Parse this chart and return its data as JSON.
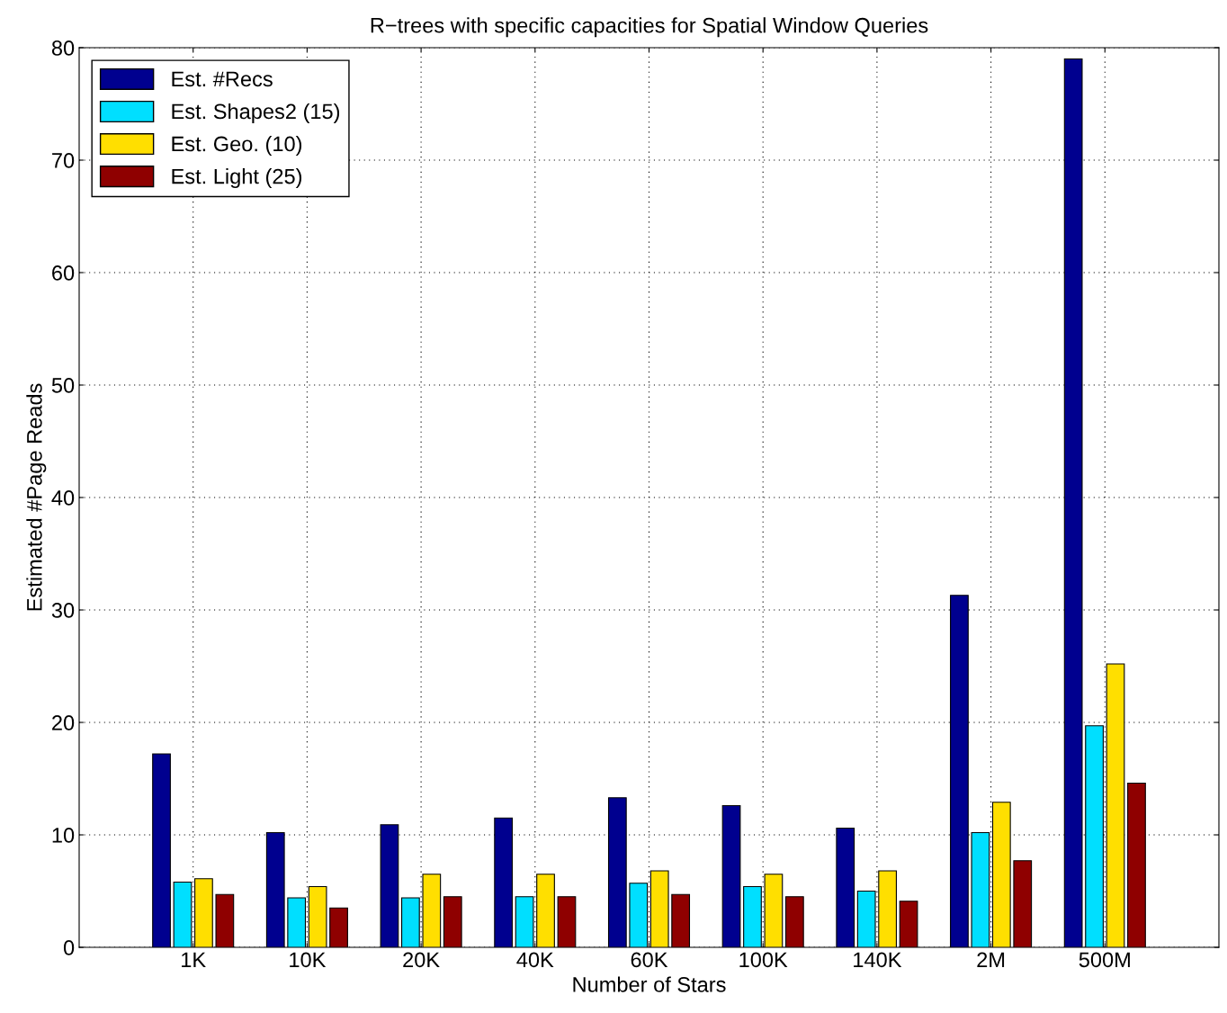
{
  "chart_data": {
    "type": "bar",
    "title": "R−trees with specific capacities for Spatial Window Queries",
    "xlabel": "Number of Stars",
    "ylabel": "Estimated #Page Reads",
    "categories": [
      "1K",
      "10K",
      "20K",
      "40K",
      "60K",
      "100K",
      "140K",
      "2M",
      "500M"
    ],
    "series": [
      {
        "name": "Est. #Recs",
        "color": "#00008f",
        "values": [
          17.2,
          10.2,
          10.9,
          11.5,
          13.3,
          12.6,
          10.6,
          31.3,
          79.0
        ]
      },
      {
        "name": "Est. Shapes2 (15)",
        "color": "#00dfff",
        "values": [
          5.8,
          4.4,
          4.4,
          4.5,
          5.7,
          5.4,
          5.0,
          10.2,
          19.7
        ]
      },
      {
        "name": "Est. Geo. (10)",
        "color": "#ffdf00",
        "values": [
          6.1,
          5.4,
          6.5,
          6.5,
          6.8,
          6.5,
          6.8,
          12.9,
          25.2
        ]
      },
      {
        "name": "Est. Light (25)",
        "color": "#8f0000",
        "values": [
          4.7,
          3.5,
          4.5,
          4.5,
          4.7,
          4.5,
          4.1,
          7.7,
          14.6
        ]
      }
    ],
    "ylim": [
      0,
      80
    ],
    "yticks": [
      0,
      10,
      20,
      30,
      40,
      50,
      60,
      70,
      80
    ],
    "grid": true,
    "legend": "top left"
  }
}
